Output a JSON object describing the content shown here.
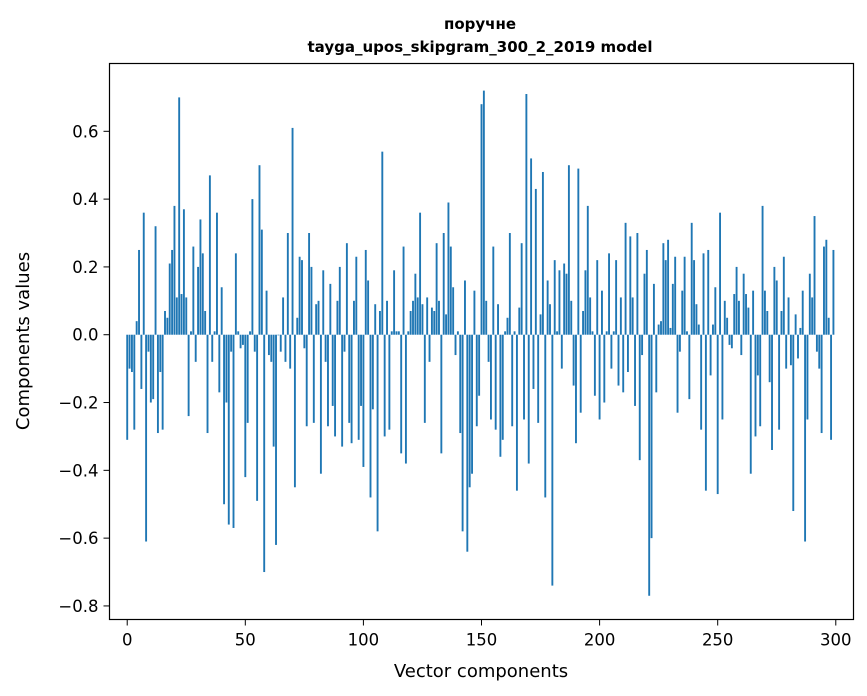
{
  "chart_data": {
    "type": "bar",
    "title": "поручне",
    "subtitle": "tayga_upos_skipgram_300_2_2019 model",
    "xlabel": "Vector components",
    "ylabel": "Components values",
    "xlim": [
      -7.5,
      307.5
    ],
    "ylim": [
      -0.84,
      0.8
    ],
    "x_ticks": [
      0,
      50,
      100,
      150,
      200,
      250,
      300
    ],
    "y_ticks": [
      -0.8,
      -0.6,
      -0.4,
      -0.2,
      0.0,
      0.2,
      0.4,
      0.6
    ],
    "y_tick_labels": [
      "−0.8",
      "−0.6",
      "−0.4",
      "−0.2",
      "0.0",
      "0.2",
      "0.4",
      "0.6"
    ],
    "bar_color": "#1f77b4",
    "values": [
      -0.31,
      -0.1,
      -0.11,
      -0.28,
      0.04,
      0.25,
      -0.16,
      0.36,
      -0.61,
      -0.05,
      -0.2,
      -0.19,
      0.32,
      -0.29,
      -0.11,
      -0.28,
      0.07,
      0.05,
      0.21,
      0.25,
      0.38,
      0.11,
      0.7,
      0.12,
      0.37,
      0.11,
      -0.24,
      0.01,
      0.26,
      -0.08,
      0.2,
      0.34,
      0.24,
      0.07,
      -0.29,
      0.47,
      -0.08,
      0.01,
      0.36,
      -0.17,
      0.14,
      -0.5,
      -0.2,
      -0.56,
      -0.05,
      -0.57,
      0.24,
      0.01,
      -0.04,
      -0.03,
      -0.42,
      -0.26,
      0.01,
      0.4,
      -0.05,
      -0.49,
      0.5,
      0.31,
      -0.7,
      0.13,
      -0.06,
      -0.08,
      -0.33,
      -0.62,
      0.0,
      -0.05,
      0.11,
      -0.08,
      0.3,
      -0.1,
      0.61,
      -0.45,
      0.05,
      0.23,
      0.22,
      -0.04,
      -0.27,
      0.3,
      0.2,
      -0.26,
      0.09,
      0.1,
      -0.41,
      0.19,
      -0.08,
      -0.27,
      0.15,
      -0.21,
      -0.3,
      0.1,
      0.2,
      -0.33,
      -0.05,
      0.27,
      -0.26,
      -0.32,
      0.1,
      0.23,
      -0.31,
      -0.21,
      -0.39,
      0.25,
      0.16,
      -0.48,
      -0.22,
      0.09,
      -0.58,
      0.07,
      0.54,
      -0.3,
      0.1,
      -0.28,
      0.01,
      0.19,
      0.01,
      0.01,
      -0.35,
      0.26,
      -0.38,
      0.01,
      0.07,
      0.1,
      0.18,
      0.11,
      0.36,
      0.09,
      -0.26,
      0.11,
      -0.08,
      0.08,
      0.07,
      0.27,
      0.1,
      -0.35,
      0.3,
      0.06,
      0.39,
      0.26,
      0.14,
      -0.06,
      0.01,
      -0.29,
      -0.58,
      0.16,
      -0.64,
      -0.45,
      -0.41,
      0.13,
      -0.27,
      -0.18,
      0.68,
      0.72,
      0.1,
      -0.08,
      -0.25,
      0.26,
      -0.28,
      0.09,
      -0.36,
      -0.31,
      0.01,
      0.05,
      0.3,
      -0.27,
      0.01,
      -0.46,
      0.08,
      0.27,
      -0.25,
      0.71,
      -0.38,
      0.52,
      -0.16,
      0.43,
      -0.26,
      0.06,
      0.48,
      -0.48,
      0.16,
      0.09,
      -0.74,
      0.22,
      0.01,
      0.19,
      -0.1,
      0.21,
      0.18,
      0.5,
      0.1,
      -0.15,
      -0.32,
      0.49,
      -0.23,
      0.07,
      0.19,
      0.38,
      0.11,
      0.01,
      -0.18,
      0.22,
      -0.25,
      0.13,
      -0.2,
      0.01,
      0.24,
      -0.1,
      0.01,
      0.22,
      -0.15,
      0.11,
      -0.17,
      0.33,
      -0.11,
      0.29,
      0.11,
      -0.21,
      0.3,
      -0.37,
      -0.06,
      0.18,
      0.25,
      -0.77,
      -0.6,
      0.15,
      -0.17,
      0.03,
      0.04,
      0.27,
      0.22,
      0.28,
      0.02,
      0.15,
      0.23,
      -0.23,
      -0.05,
      0.13,
      0.23,
      0.01,
      -0.19,
      0.33,
      0.22,
      0.09,
      0.03,
      -0.28,
      0.24,
      -0.46,
      0.25,
      -0.12,
      0.03,
      0.14,
      -0.47,
      0.36,
      -0.25,
      0.1,
      0.05,
      -0.03,
      -0.04,
      0.12,
      0.2,
      0.1,
      -0.06,
      0.18,
      0.12,
      0.08,
      -0.41,
      0.13,
      -0.3,
      -0.12,
      -0.27,
      0.38,
      0.13,
      0.07,
      -0.14,
      -0.34,
      0.2,
      0.16,
      -0.28,
      0.07,
      0.23,
      -0.1,
      0.11,
      -0.09,
      -0.52,
      0.06,
      -0.07,
      0.02,
      0.13,
      -0.61,
      -0.25,
      0.18,
      0.11,
      0.35,
      -0.05,
      -0.1,
      -0.29,
      0.26,
      0.28,
      0.05,
      -0.31,
      0.25
    ]
  }
}
